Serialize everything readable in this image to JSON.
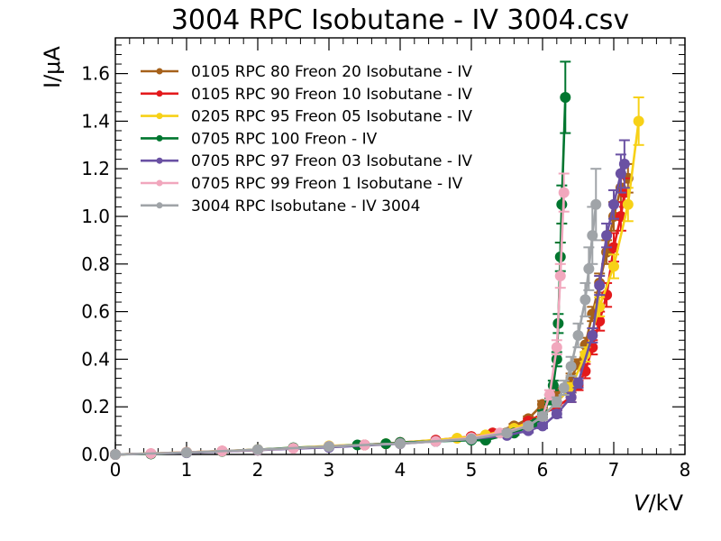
{
  "chart_data": {
    "type": "line",
    "title": "3004 RPC Isobutane - IV 3004.csv",
    "xlabel_italic": "V",
    "xlabel_rest": "/kV",
    "ylabel": "I/μA",
    "xlim": [
      0,
      8
    ],
    "ylim": [
      0,
      1.75
    ],
    "x_ticks": [
      "0",
      "1",
      "2",
      "3",
      "4",
      "5",
      "6",
      "7",
      "8"
    ],
    "y_ticks": [
      "0.0",
      "0.2",
      "0.4",
      "0.6",
      "0.8",
      "1.0",
      "1.2",
      "1.4",
      "1.6"
    ],
    "grid": false,
    "legend_position": "top-left",
    "series": [
      {
        "name": "0105 RPC 80 Freon 20 Isobutane - IV",
        "color": "#a6611a",
        "points": [
          [
            0.0,
            0.0
          ],
          [
            0.5,
            0.003
          ],
          [
            1.0,
            0.008
          ],
          [
            1.5,
            0.013
          ],
          [
            2.0,
            0.018
          ],
          [
            2.5,
            0.027
          ],
          [
            3.0,
            0.033
          ],
          [
            3.5,
            0.04
          ],
          [
            4.0,
            0.05
          ],
          [
            4.5,
            0.057
          ],
          [
            5.0,
            0.075
          ],
          [
            5.3,
            0.09
          ],
          [
            5.6,
            0.12
          ],
          [
            5.8,
            0.15
          ],
          [
            6.0,
            0.21
          ],
          [
            6.2,
            0.26
          ],
          [
            6.4,
            0.32
          ],
          [
            6.5,
            0.38
          ],
          [
            6.6,
            0.46
          ],
          [
            6.7,
            0.59
          ],
          [
            6.8,
            0.72
          ],
          [
            6.9,
            0.85
          ],
          [
            7.0,
            1.0
          ],
          [
            7.1,
            1.12
          ],
          [
            7.2,
            1.16
          ]
        ],
        "errors": [
          0,
          0,
          0,
          0,
          0,
          0,
          0,
          0,
          0,
          0,
          0.005,
          0.005,
          0.008,
          0.01,
          0.015,
          0.02,
          0.02,
          0.02,
          0.03,
          0.03,
          0.04,
          0.05,
          0.06,
          0.06,
          0.06
        ]
      },
      {
        "name": "0105 RPC 90 Freon 10 Isobutane - IV",
        "color": "#e31a1c",
        "points": [
          [
            0.0,
            0.0
          ],
          [
            0.5,
            0.003
          ],
          [
            1.0,
            0.009
          ],
          [
            1.5,
            0.014
          ],
          [
            2.0,
            0.02
          ],
          [
            2.5,
            0.027
          ],
          [
            3.0,
            0.034
          ],
          [
            3.5,
            0.04
          ],
          [
            4.0,
            0.05
          ],
          [
            4.5,
            0.06
          ],
          [
            5.0,
            0.075
          ],
          [
            5.3,
            0.09
          ],
          [
            5.6,
            0.11
          ],
          [
            5.8,
            0.14
          ],
          [
            6.0,
            0.17
          ],
          [
            6.2,
            0.2
          ],
          [
            6.4,
            0.24
          ],
          [
            6.5,
            0.29
          ],
          [
            6.6,
            0.35
          ],
          [
            6.7,
            0.45
          ],
          [
            6.8,
            0.56
          ],
          [
            6.9,
            0.67
          ],
          [
            7.0,
            0.87
          ],
          [
            7.1,
            1.0
          ],
          [
            7.15,
            1.1
          ]
        ],
        "errors": [
          0,
          0,
          0,
          0,
          0,
          0,
          0,
          0,
          0,
          0,
          0.005,
          0.005,
          0.008,
          0.01,
          0.015,
          0.015,
          0.02,
          0.02,
          0.03,
          0.03,
          0.04,
          0.05,
          0.06,
          0.06,
          0.06
        ]
      },
      {
        "name": "0205 RPC 95 Freon 05 Isobutane - IV",
        "color": "#f7d117",
        "points": [
          [
            0.0,
            0.0
          ],
          [
            1.0,
            0.009
          ],
          [
            2.0,
            0.02
          ],
          [
            3.0,
            0.036
          ],
          [
            3.8,
            0.045
          ],
          [
            4.8,
            0.068
          ],
          [
            5.2,
            0.082
          ],
          [
            5.6,
            0.11
          ],
          [
            6.0,
            0.16
          ],
          [
            6.4,
            0.28
          ],
          [
            6.6,
            0.42
          ],
          [
            6.8,
            0.62
          ],
          [
            7.0,
            0.79
          ],
          [
            7.2,
            1.05
          ],
          [
            7.35,
            1.4
          ]
        ],
        "errors": [
          0,
          0,
          0,
          0,
          0,
          0.005,
          0.005,
          0.01,
          0.015,
          0.02,
          0.03,
          0.04,
          0.05,
          0.07,
          0.1
        ]
      },
      {
        "name": "0705 RPC 100 Freon - IV",
        "color": "#00762f",
        "points": [
          [
            0.0,
            0.0
          ],
          [
            0.5,
            0.002
          ],
          [
            1.0,
            0.008
          ],
          [
            1.5,
            0.013
          ],
          [
            2.0,
            0.02
          ],
          [
            2.5,
            0.028
          ],
          [
            3.0,
            0.033
          ],
          [
            3.4,
            0.04
          ],
          [
            3.8,
            0.045
          ],
          [
            4.0,
            0.05
          ],
          [
            4.5,
            0.055
          ],
          [
            5.0,
            0.06
          ],
          [
            5.2,
            0.06
          ],
          [
            5.6,
            0.09
          ],
          [
            5.9,
            0.13
          ],
          [
            6.0,
            0.17
          ],
          [
            6.1,
            0.23
          ],
          [
            6.15,
            0.29
          ],
          [
            6.2,
            0.4
          ],
          [
            6.22,
            0.55
          ],
          [
            6.25,
            0.83
          ],
          [
            6.27,
            1.05
          ],
          [
            6.32,
            1.5
          ]
        ],
        "errors": [
          0,
          0,
          0,
          0,
          0,
          0,
          0,
          0,
          0,
          0,
          0,
          0.005,
          0.005,
          0.008,
          0.01,
          0.015,
          0.02,
          0.02,
          0.03,
          0.04,
          0.06,
          0.08,
          0.15
        ]
      },
      {
        "name": "0705 RPC 97 Freon 03 Isobutane - IV",
        "color": "#6a51a3",
        "points": [
          [
            0.0,
            0.0
          ],
          [
            1.0,
            0.007
          ],
          [
            2.0,
            0.018
          ],
          [
            3.0,
            0.03
          ],
          [
            4.0,
            0.045
          ],
          [
            4.5,
            0.055
          ],
          [
            5.0,
            0.065
          ],
          [
            5.5,
            0.08
          ],
          [
            5.8,
            0.1
          ],
          [
            6.0,
            0.12
          ],
          [
            6.2,
            0.17
          ],
          [
            6.4,
            0.24
          ],
          [
            6.5,
            0.3
          ],
          [
            6.7,
            0.5
          ],
          [
            6.8,
            0.71
          ],
          [
            6.9,
            0.92
          ],
          [
            7.0,
            1.05
          ],
          [
            7.1,
            1.18
          ],
          [
            7.15,
            1.22
          ]
        ],
        "errors": [
          0,
          0,
          0,
          0,
          0,
          0,
          0.005,
          0.005,
          0.008,
          0.01,
          0.015,
          0.02,
          0.02,
          0.03,
          0.04,
          0.05,
          0.06,
          0.08,
          0.1
        ]
      },
      {
        "name": "0705 RPC 99 Freon 1 Isobutane - IV",
        "color": "#f1a7bd",
        "points": [
          [
            0.0,
            0.0
          ],
          [
            0.5,
            0.004
          ],
          [
            1.0,
            0.009
          ],
          [
            1.5,
            0.014
          ],
          [
            2.0,
            0.019
          ],
          [
            2.5,
            0.026
          ],
          [
            3.0,
            0.034
          ],
          [
            3.5,
            0.04
          ],
          [
            4.0,
            0.046
          ],
          [
            4.5,
            0.055
          ],
          [
            5.0,
            0.07
          ],
          [
            5.4,
            0.09
          ],
          [
            5.8,
            0.12
          ],
          [
            6.0,
            0.16
          ],
          [
            6.1,
            0.25
          ],
          [
            6.2,
            0.45
          ],
          [
            6.25,
            0.75
          ],
          [
            6.3,
            1.1
          ]
        ],
        "errors": [
          0,
          0,
          0,
          0,
          0,
          0,
          0,
          0,
          0,
          0,
          0.005,
          0.005,
          0.01,
          0.015,
          0.02,
          0.03,
          0.05,
          0.08
        ]
      },
      {
        "name": "3004 RPC Isobutane - IV 3004",
        "color": "#a0a4a8",
        "points": [
          [
            0.0,
            0.0
          ],
          [
            1.0,
            0.008
          ],
          [
            2.0,
            0.02
          ],
          [
            3.0,
            0.033
          ],
          [
            4.0,
            0.046
          ],
          [
            5.0,
            0.065
          ],
          [
            5.5,
            0.09
          ],
          [
            5.8,
            0.12
          ],
          [
            6.0,
            0.16
          ],
          [
            6.2,
            0.22
          ],
          [
            6.3,
            0.28
          ],
          [
            6.4,
            0.37
          ],
          [
            6.5,
            0.5
          ],
          [
            6.6,
            0.65
          ],
          [
            6.65,
            0.78
          ],
          [
            6.7,
            0.92
          ],
          [
            6.75,
            1.05
          ]
        ],
        "errors": [
          0,
          0,
          0,
          0,
          0,
          0.005,
          0.008,
          0.01,
          0.015,
          0.02,
          0.03,
          0.04,
          0.05,
          0.07,
          0.09,
          0.12,
          0.15
        ]
      }
    ]
  }
}
